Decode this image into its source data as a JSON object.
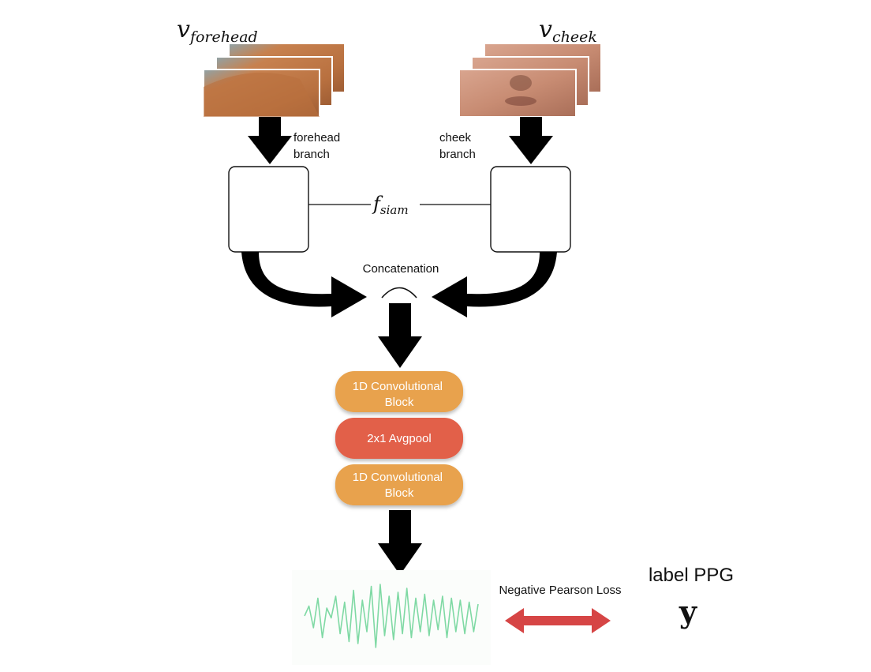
{
  "inputs": {
    "forehead": {
      "var": "v",
      "sub": "forehead",
      "branch_line1": "forehead",
      "branch_line2": "branch"
    },
    "cheek": {
      "var": "v",
      "sub": "cheek",
      "branch_line1": "cheek",
      "branch_line2": "branch"
    }
  },
  "siamese": {
    "var": "f",
    "sub": "siam"
  },
  "concat": {
    "label": "Concatenation"
  },
  "blocks": [
    {
      "line1": "1D Convolutional",
      "line2": "Block",
      "color": "#E8A24E"
    },
    {
      "line1": "2x1 Avgpool",
      "line2": "",
      "color": "#E2614A"
    },
    {
      "line1": "1D Convolutional",
      "line2": "Block",
      "color": "#E8A24E"
    }
  ],
  "loss": {
    "label": "Negative Pearson Loss",
    "arrow_color": "#D64545"
  },
  "target": {
    "title": "label PPG",
    "symbol": "y"
  },
  "colors": {
    "arrow": "#000000",
    "signal": "#7FD9A4",
    "skin_forehead": "#C27C4E",
    "skin_cheek": "#C9917A"
  },
  "signal": {
    "samples": [
      0.1,
      0.35,
      -0.2,
      0.55,
      -0.45,
      0.3,
      0.05,
      0.6,
      -0.35,
      0.45,
      -0.55,
      0.75,
      -0.6,
      0.5,
      -0.3,
      0.85,
      -0.7,
      0.9,
      -0.4,
      0.6,
      -0.5,
      0.7,
      -0.35,
      0.8,
      -0.45,
      0.55,
      -0.3,
      0.65,
      -0.4,
      0.5,
      -0.25,
      0.6,
      -0.45,
      0.55,
      -0.3,
      0.5,
      -0.35,
      0.45,
      -0.3,
      0.4
    ]
  }
}
